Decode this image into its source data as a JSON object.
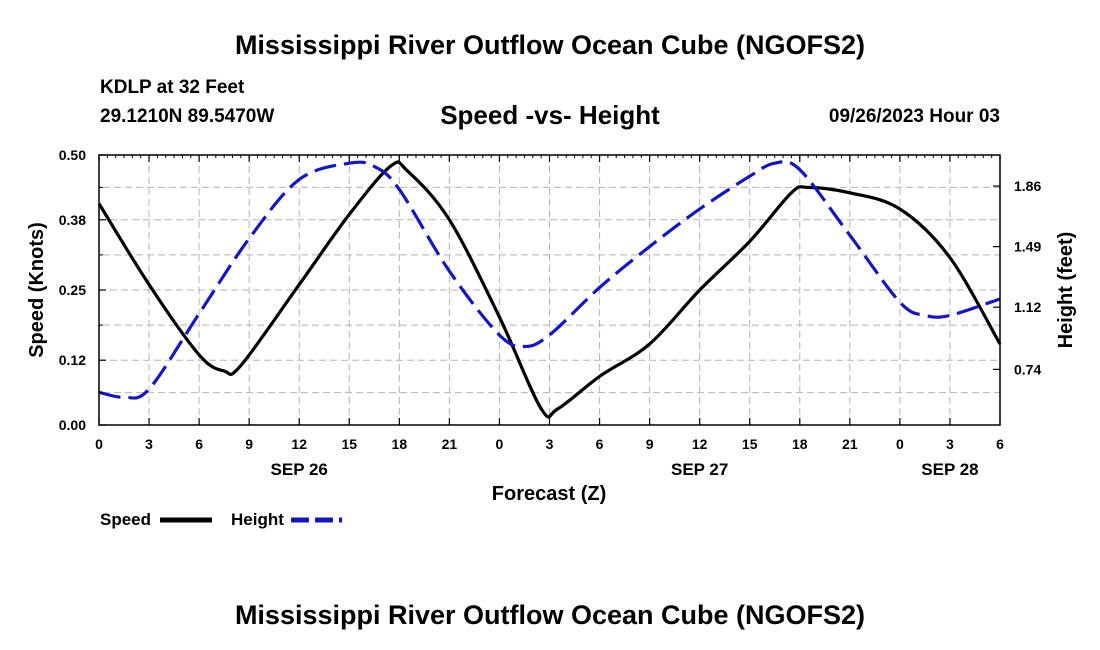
{
  "header": {
    "title": "Mississippi River Outflow Ocean Cube (NGOFS2)",
    "station": "KDLP at 32 Feet",
    "coordinates": "29.1210N  89.5470W",
    "subtitle": "Speed -vs- Height",
    "datetime": "09/26/2023 Hour 03"
  },
  "footer": {
    "title": "Mississippi River Outflow Ocean Cube (NGOFS2)"
  },
  "legend": {
    "speed": "Speed",
    "height": "Height"
  },
  "colors": {
    "speed": "#000000",
    "height": "#1515c8",
    "grid": "#b4b4b4"
  },
  "chart_data": {
    "type": "line",
    "xlabel": "Forecast (Z)",
    "ylabel_left": "Speed (Knots)",
    "ylabel_right": "Height (feet)",
    "x_range_hours": [
      0,
      54
    ],
    "x_tick_step_hours": 3,
    "x_tick_labels": [
      "0",
      "3",
      "6",
      "9",
      "12",
      "15",
      "18",
      "21",
      "0",
      "3",
      "6",
      "9",
      "12",
      "15",
      "18",
      "21",
      "0",
      "3",
      "6"
    ],
    "date_labels": [
      {
        "label": "SEP 26",
        "hour": 12
      },
      {
        "label": "SEP 27",
        "hour": 36
      },
      {
        "label": "SEP 28",
        "hour": 51
      }
    ],
    "y_left": {
      "min": 0,
      "max": 0.5,
      "ticks": [
        0.0,
        0.12,
        0.25,
        0.38,
        0.5
      ],
      "tick_labels": [
        "0.00",
        "0.12",
        "0.25",
        "0.38",
        "0.50"
      ]
    },
    "y_right": {
      "min": 0.4,
      "max": 2.05,
      "ticks": [
        0.74,
        1.12,
        1.49,
        1.86
      ],
      "tick_labels": [
        "0.74",
        "1.12",
        "1.49",
        "1.86"
      ]
    },
    "series": [
      {
        "name": "Speed",
        "axis": "left",
        "style": "solid",
        "x": [
          0,
          3,
          6,
          7.5,
          8.5,
          12,
          15,
          17.5,
          18.5,
          21,
          24,
          26.5,
          27.5,
          30,
          33,
          36,
          39,
          41.5,
          42.5,
          45,
          48,
          51,
          54
        ],
        "y": [
          0.41,
          0.26,
          0.13,
          0.1,
          0.11,
          0.26,
          0.39,
          0.48,
          0.47,
          0.38,
          0.2,
          0.03,
          0.03,
          0.09,
          0.15,
          0.25,
          0.34,
          0.43,
          0.44,
          0.43,
          0.4,
          0.31,
          0.15
        ]
      },
      {
        "name": "Height",
        "axis": "right",
        "style": "dashed",
        "x": [
          0,
          1.5,
          3,
          6,
          9,
          12,
          15,
          16.5,
          18,
          21,
          24,
          25.5,
          27,
          30,
          33,
          36,
          39,
          40.5,
          42,
          45,
          48,
          49.5,
          51,
          54
        ],
        "y": [
          0.6,
          0.57,
          0.62,
          1.08,
          1.54,
          1.9,
          2.0,
          1.98,
          1.84,
          1.34,
          0.95,
          0.88,
          0.95,
          1.24,
          1.49,
          1.72,
          1.92,
          2.0,
          1.96,
          1.56,
          1.15,
          1.07,
          1.07,
          1.17
        ]
      }
    ]
  }
}
